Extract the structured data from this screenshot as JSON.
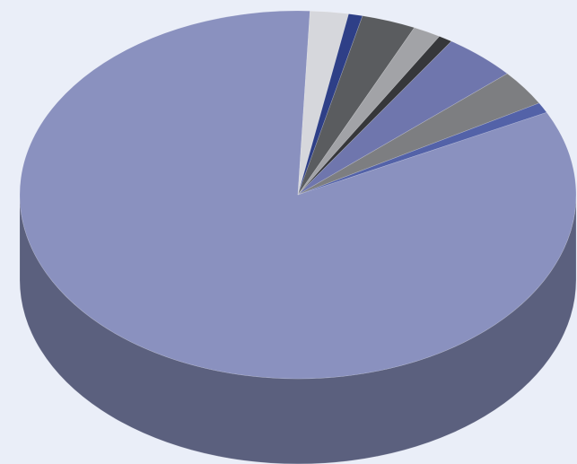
{
  "chart_data": {
    "type": "pie",
    "style": "3d",
    "title": "",
    "legend": "none",
    "data_labels": "none",
    "slices": [
      {
        "value": 82.0,
        "color": "#8a91bf"
      },
      {
        "value": 2.2,
        "color": "#d6d7dc"
      },
      {
        "value": 0.8,
        "color": "#2e3f87"
      },
      {
        "value": 3.1,
        "color": "#5a5c5f"
      },
      {
        "value": 1.6,
        "color": "#a2a3a7"
      },
      {
        "value": 0.8,
        "color": "#36373a"
      },
      {
        "value": 4.2,
        "color": "#6f76ad"
      },
      {
        "value": 3.1,
        "color": "#7d7e81"
      },
      {
        "value": 0.9,
        "color": "#5362a8"
      }
    ]
  }
}
